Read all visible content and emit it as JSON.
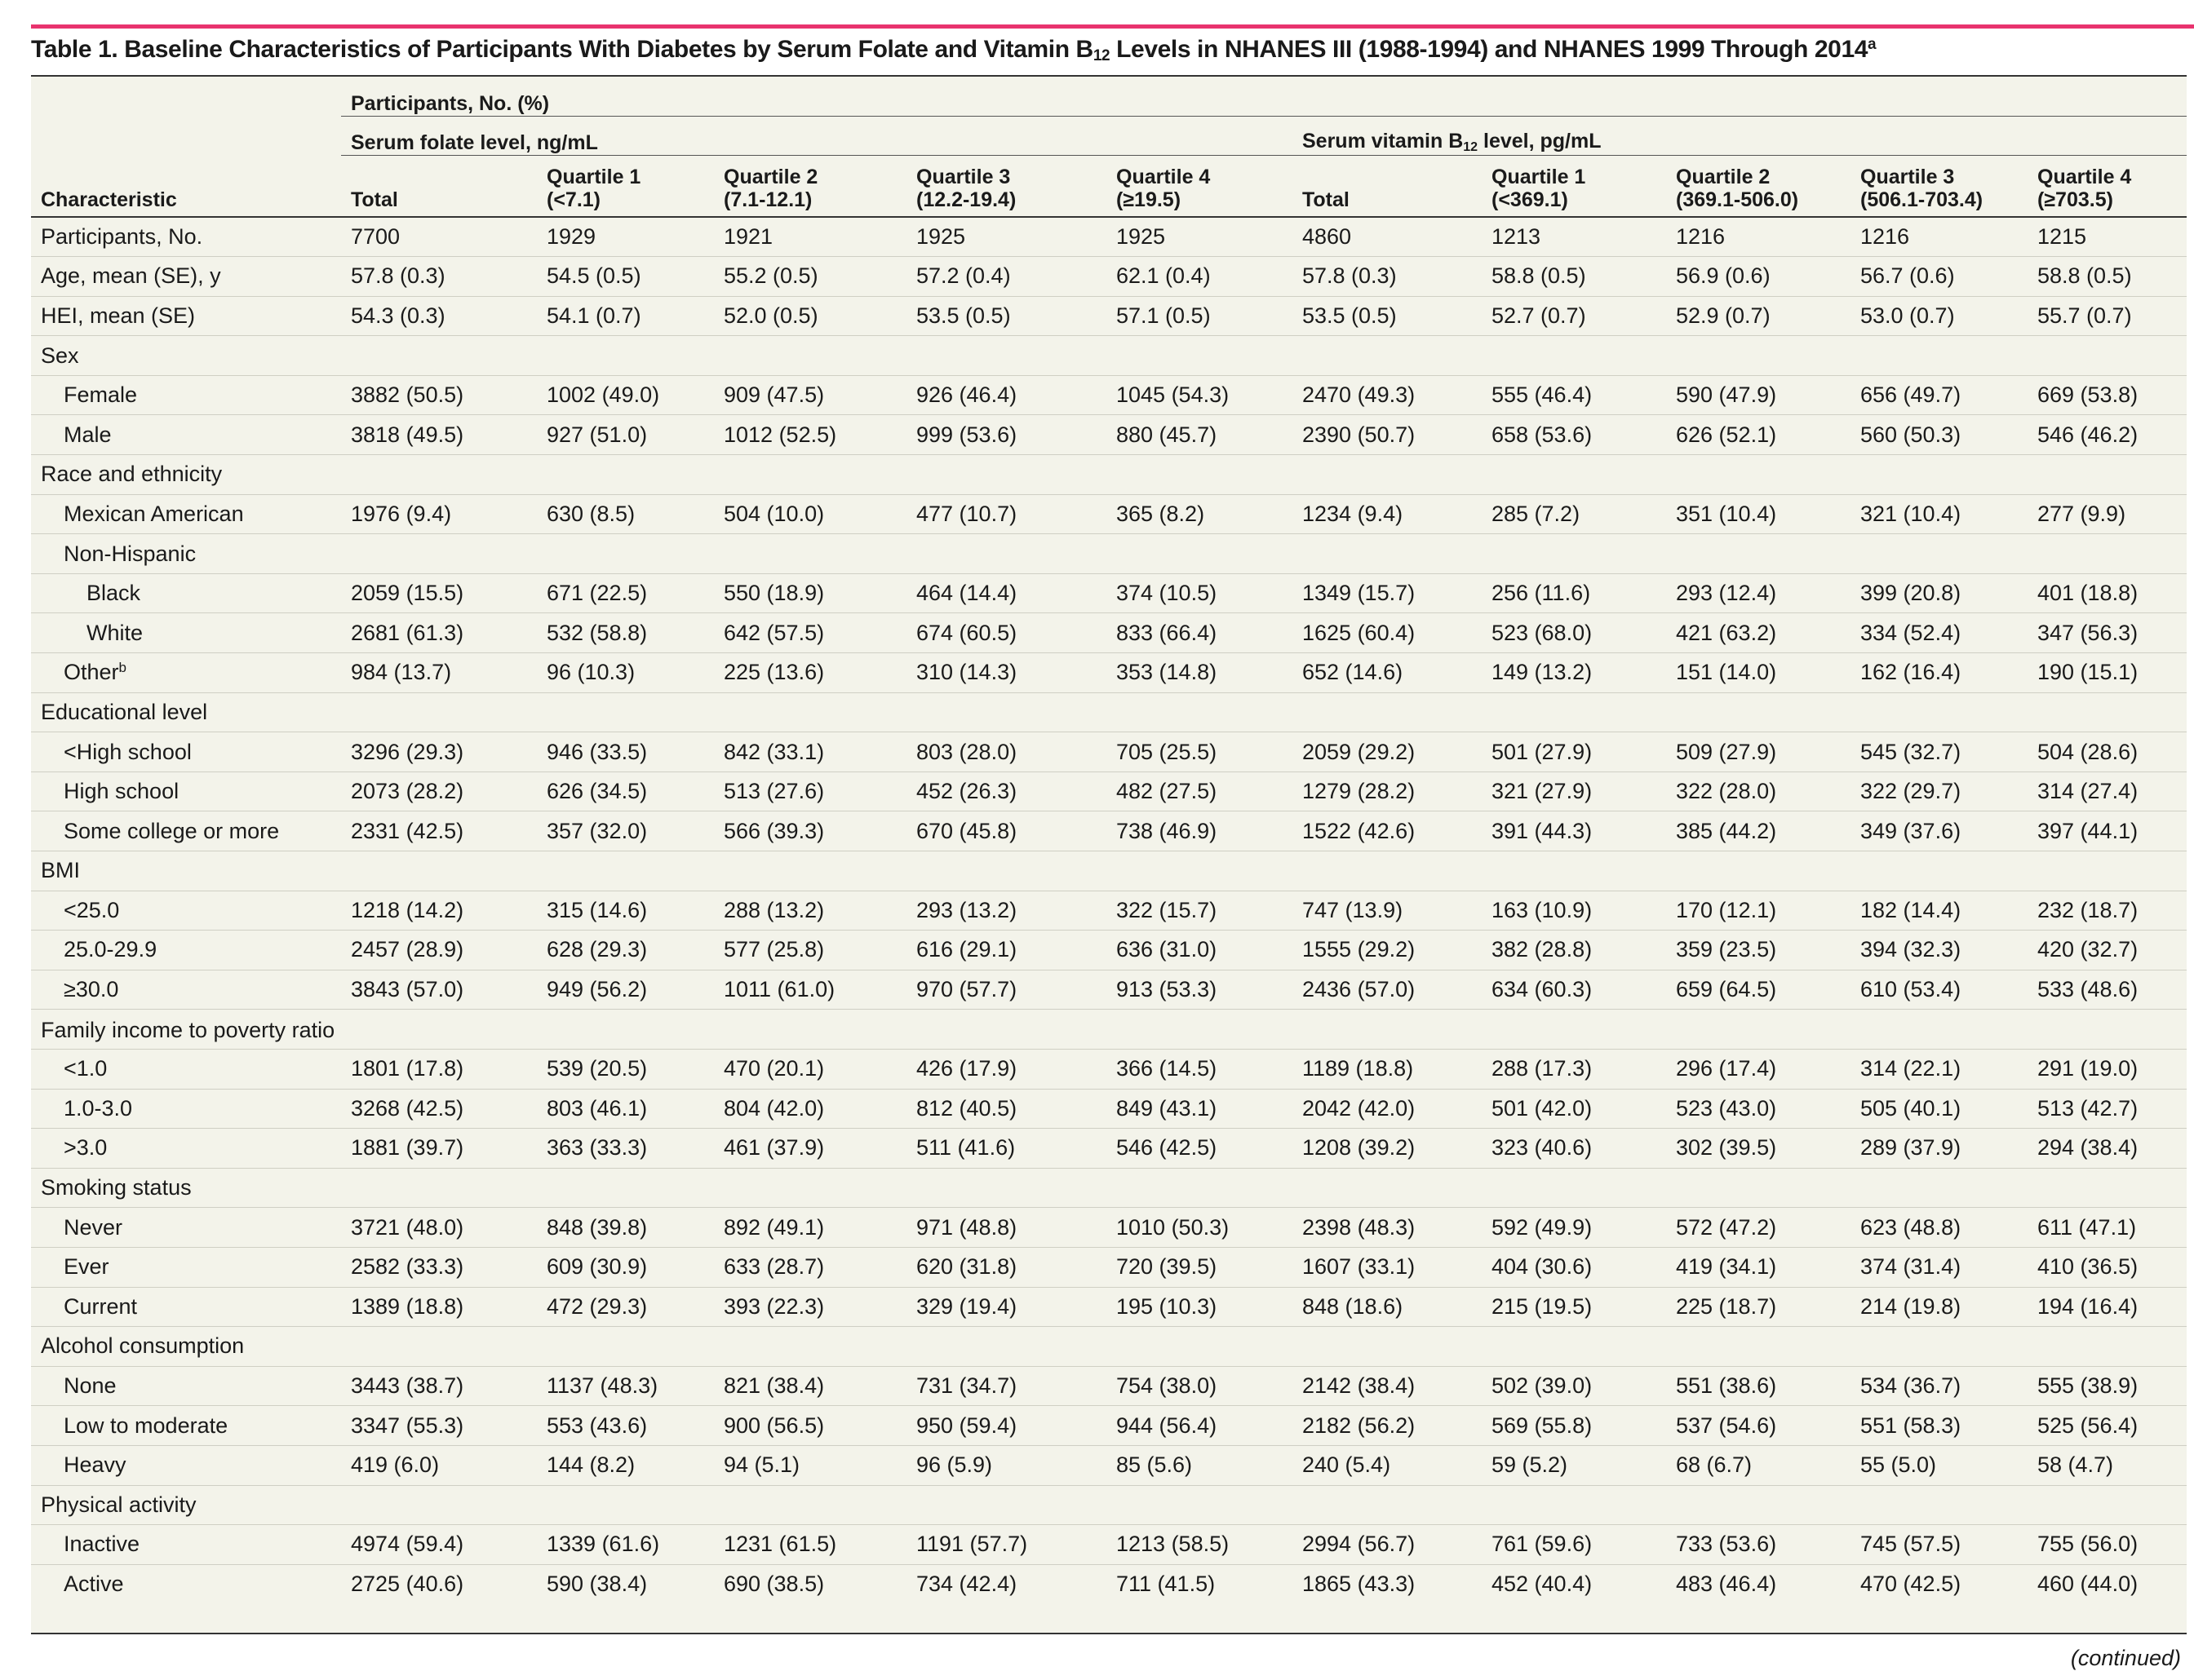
{
  "table": {
    "title_pre": "Table 1. Baseline Characteristics of Participants With Diabetes by Serum Folate and Vitamin B",
    "title_sub": "12",
    "title_post": " Levels in NHANES III (1988-1994) and NHANES 1999 Through 2014",
    "title_sup": "a",
    "header": {
      "participants_label": "Participants, No. (%)",
      "folate_group": "Serum folate level, ng/mL",
      "b12_group_pre": "Serum vitamin B",
      "b12_group_sub": "12",
      "b12_group_post": " level, pg/mL",
      "characteristic": "Characteristic",
      "cols": [
        {
          "line1": "Total",
          "line2": ""
        },
        {
          "line1": "Quartile 1",
          "line2": "(<7.1)"
        },
        {
          "line1": "Quartile 2",
          "line2": "(7.1-12.1)"
        },
        {
          "line1": "Quartile 3",
          "line2": "(12.2-19.4)"
        },
        {
          "line1": "Quartile 4",
          "line2": "(≥19.5)"
        },
        {
          "line1": "Total",
          "line2": ""
        },
        {
          "line1": "Quartile 1",
          "line2": "(<369.1)"
        },
        {
          "line1": "Quartile 2",
          "line2": "(369.1-506.0)"
        },
        {
          "line1": "Quartile 3",
          "line2": "(506.1-703.4)"
        },
        {
          "line1": "Quartile 4",
          "line2": "(≥703.5)"
        }
      ]
    },
    "rows": [
      {
        "label": "Participants, No.",
        "level": 0,
        "values": [
          "7700",
          "1929",
          "1921",
          "1925",
          "1925",
          "4860",
          "1213",
          "1216",
          "1216",
          "1215"
        ]
      },
      {
        "label": "Age, mean (SE), y",
        "level": 0,
        "values": [
          "57.8 (0.3)",
          "54.5 (0.5)",
          "55.2 (0.5)",
          "57.2 (0.4)",
          "62.1 (0.4)",
          "57.8 (0.3)",
          "58.8 (0.5)",
          "56.9 (0.6)",
          "56.7 (0.6)",
          "58.8 (0.5)"
        ]
      },
      {
        "label": "HEI, mean (SE)",
        "level": 0,
        "values": [
          "54.3 (0.3)",
          "54.1 (0.7)",
          "52.0 (0.5)",
          "53.5 (0.5)",
          "57.1 (0.5)",
          "53.5 (0.5)",
          "52.7 (0.7)",
          "52.9 (0.7)",
          "53.0 (0.7)",
          "55.7 (0.7)"
        ]
      },
      {
        "label": "Sex",
        "level": 0,
        "values": []
      },
      {
        "label": "Female",
        "level": 1,
        "values": [
          "3882 (50.5)",
          "1002 (49.0)",
          "909 (47.5)",
          "926 (46.4)",
          "1045 (54.3)",
          "2470 (49.3)",
          "555 (46.4)",
          "590 (47.9)",
          "656 (49.7)",
          "669 (53.8)"
        ]
      },
      {
        "label": "Male",
        "level": 1,
        "values": [
          "3818 (49.5)",
          "927 (51.0)",
          "1012 (52.5)",
          "999 (53.6)",
          "880 (45.7)",
          "2390 (50.7)",
          "658 (53.6)",
          "626 (52.1)",
          "560 (50.3)",
          "546 (46.2)"
        ]
      },
      {
        "label": "Race and ethnicity",
        "level": 0,
        "values": []
      },
      {
        "label": "Mexican American",
        "level": 1,
        "values": [
          "1976 (9.4)",
          "630 (8.5)",
          "504 (10.0)",
          "477 (10.7)",
          "365 (8.2)",
          "1234 (9.4)",
          "285 (7.2)",
          "351 (10.4)",
          "321 (10.4)",
          "277 (9.9)"
        ]
      },
      {
        "label": "Non-Hispanic",
        "level": 1,
        "values": []
      },
      {
        "label": "Black",
        "level": 2,
        "values": [
          "2059 (15.5)",
          "671 (22.5)",
          "550 (18.9)",
          "464 (14.4)",
          "374 (10.5)",
          "1349 (15.7)",
          "256 (11.6)",
          "293 (12.4)",
          "399 (20.8)",
          "401 (18.8)"
        ]
      },
      {
        "label": "White",
        "level": 2,
        "values": [
          "2681 (61.3)",
          "532 (58.8)",
          "642 (57.5)",
          "674 (60.5)",
          "833 (66.4)",
          "1625 (60.4)",
          "523 (68.0)",
          "421 (63.2)",
          "334 (52.4)",
          "347 (56.3)"
        ]
      },
      {
        "label": "Other",
        "sup": "b",
        "level": 1,
        "values": [
          "984 (13.7)",
          "96 (10.3)",
          "225 (13.6)",
          "310 (14.3)",
          "353 (14.8)",
          "652 (14.6)",
          "149 (13.2)",
          "151 (14.0)",
          "162 (16.4)",
          "190 (15.1)"
        ]
      },
      {
        "label": "Educational level",
        "level": 0,
        "values": []
      },
      {
        "label": "<High school",
        "level": 1,
        "values": [
          "3296 (29.3)",
          "946 (33.5)",
          "842 (33.1)",
          "803 (28.0)",
          "705 (25.5)",
          "2059 (29.2)",
          "501 (27.9)",
          "509 (27.9)",
          "545 (32.7)",
          "504 (28.6)"
        ]
      },
      {
        "label": "High school",
        "level": 1,
        "values": [
          "2073 (28.2)",
          "626 (34.5)",
          "513 (27.6)",
          "452 (26.3)",
          "482 (27.5)",
          "1279 (28.2)",
          "321 (27.9)",
          "322 (28.0)",
          "322 (29.7)",
          "314 (27.4)"
        ]
      },
      {
        "label": "Some college or more",
        "level": 1,
        "values": [
          "2331 (42.5)",
          "357 (32.0)",
          "566 (39.3)",
          "670 (45.8)",
          "738 (46.9)",
          "1522 (42.6)",
          "391 (44.3)",
          "385 (44.2)",
          "349 (37.6)",
          "397 (44.1)"
        ]
      },
      {
        "label": "BMI",
        "level": 0,
        "values": []
      },
      {
        "label": "<25.0",
        "level": 1,
        "values": [
          "1218 (14.2)",
          "315 (14.6)",
          "288 (13.2)",
          "293 (13.2)",
          "322 (15.7)",
          "747 (13.9)",
          "163 (10.9)",
          "170 (12.1)",
          "182 (14.4)",
          "232 (18.7)"
        ]
      },
      {
        "label": "25.0-29.9",
        "level": 1,
        "values": [
          "2457 (28.9)",
          "628 (29.3)",
          "577 (25.8)",
          "616 (29.1)",
          "636 (31.0)",
          "1555 (29.2)",
          "382 (28.8)",
          "359 (23.5)",
          "394 (32.3)",
          "420 (32.7)"
        ]
      },
      {
        "label": "≥30.0",
        "level": 1,
        "values": [
          "3843 (57.0)",
          "949 (56.2)",
          "1011 (61.0)",
          "970 (57.7)",
          "913 (53.3)",
          "2436 (57.0)",
          "634 (60.3)",
          "659 (64.5)",
          "610 (53.4)",
          "533 (48.6)"
        ]
      },
      {
        "label": "Family income to poverty ratio",
        "level": 0,
        "wrap": true,
        "values": []
      },
      {
        "label": "<1.0",
        "level": 1,
        "values": [
          "1801 (17.8)",
          "539 (20.5)",
          "470 (20.1)",
          "426 (17.9)",
          "366 (14.5)",
          "1189 (18.8)",
          "288 (17.3)",
          "296 (17.4)",
          "314 (22.1)",
          "291 (19.0)"
        ]
      },
      {
        "label": "1.0-3.0",
        "level": 1,
        "values": [
          "3268 (42.5)",
          "803 (46.1)",
          "804 (42.0)",
          "812 (40.5)",
          "849 (43.1)",
          "2042 (42.0)",
          "501 (42.0)",
          "523 (43.0)",
          "505 (40.1)",
          "513 (42.7)"
        ]
      },
      {
        "label": ">3.0",
        "level": 1,
        "values": [
          "1881 (39.7)",
          "363 (33.3)",
          "461 (37.9)",
          "511 (41.6)",
          "546 (42.5)",
          "1208 (39.2)",
          "323 (40.6)",
          "302 (39.5)",
          "289 (37.9)",
          "294 (38.4)"
        ]
      },
      {
        "label": "Smoking status",
        "level": 0,
        "values": []
      },
      {
        "label": "Never",
        "level": 1,
        "values": [
          "3721 (48.0)",
          "848 (39.8)",
          "892 (49.1)",
          "971 (48.8)",
          "1010 (50.3)",
          "2398 (48.3)",
          "592 (49.9)",
          "572 (47.2)",
          "623 (48.8)",
          "611 (47.1)"
        ]
      },
      {
        "label": "Ever",
        "level": 1,
        "values": [
          "2582 (33.3)",
          "609 (30.9)",
          "633 (28.7)",
          "620 (31.8)",
          "720 (39.5)",
          "1607 (33.1)",
          "404 (30.6)",
          "419 (34.1)",
          "374 (31.4)",
          "410 (36.5)"
        ]
      },
      {
        "label": "Current",
        "level": 1,
        "values": [
          "1389 (18.8)",
          "472 (29.3)",
          "393 (22.3)",
          "329 (19.4)",
          "195 (10.3)",
          "848 (18.6)",
          "215 (19.5)",
          "225 (18.7)",
          "214 (19.8)",
          "194 (16.4)"
        ]
      },
      {
        "label": "Alcohol consumption",
        "level": 0,
        "values": []
      },
      {
        "label": "None",
        "level": 1,
        "values": [
          "3443 (38.7)",
          "1137 (48.3)",
          "821 (38.4)",
          "731 (34.7)",
          "754 (38.0)",
          "2142 (38.4)",
          "502 (39.0)",
          "551 (38.6)",
          "534 (36.7)",
          "555 (38.9)"
        ]
      },
      {
        "label": "Low to moderate",
        "level": 1,
        "values": [
          "3347 (55.3)",
          "553 (43.6)",
          "900 (56.5)",
          "950 (59.4)",
          "944 (56.4)",
          "2182 (56.2)",
          "569 (55.8)",
          "537 (54.6)",
          "551 (58.3)",
          "525 (56.4)"
        ]
      },
      {
        "label": "Heavy",
        "level": 1,
        "values": [
          "419 (6.0)",
          "144 (8.2)",
          "94 (5.1)",
          "96 (5.9)",
          "85 (5.6)",
          "240 (5.4)",
          "59 (5.2)",
          "68 (6.7)",
          "55 (5.0)",
          "58 (4.7)"
        ]
      },
      {
        "label": "Physical activity",
        "level": 0,
        "values": []
      },
      {
        "label": "Inactive",
        "level": 1,
        "values": [
          "4974 (59.4)",
          "1339 (61.6)",
          "1231 (61.5)",
          "1191 (57.7)",
          "1213 (58.5)",
          "2994 (56.7)",
          "761 (59.6)",
          "733 (53.6)",
          "745 (57.5)",
          "755 (56.0)"
        ]
      },
      {
        "label": "Active",
        "level": 1,
        "values": [
          "2725 (40.6)",
          "590 (38.4)",
          "690 (38.5)",
          "734 (42.4)",
          "711 (41.5)",
          "1865 (43.3)",
          "452 (40.4)",
          "483 (46.4)",
          "470 (42.5)",
          "460 (44.0)"
        ]
      }
    ],
    "continued": "(continued)"
  },
  "colors": {
    "accent_rule": "#e8336e",
    "table_bg": "#f3f3ea"
  }
}
